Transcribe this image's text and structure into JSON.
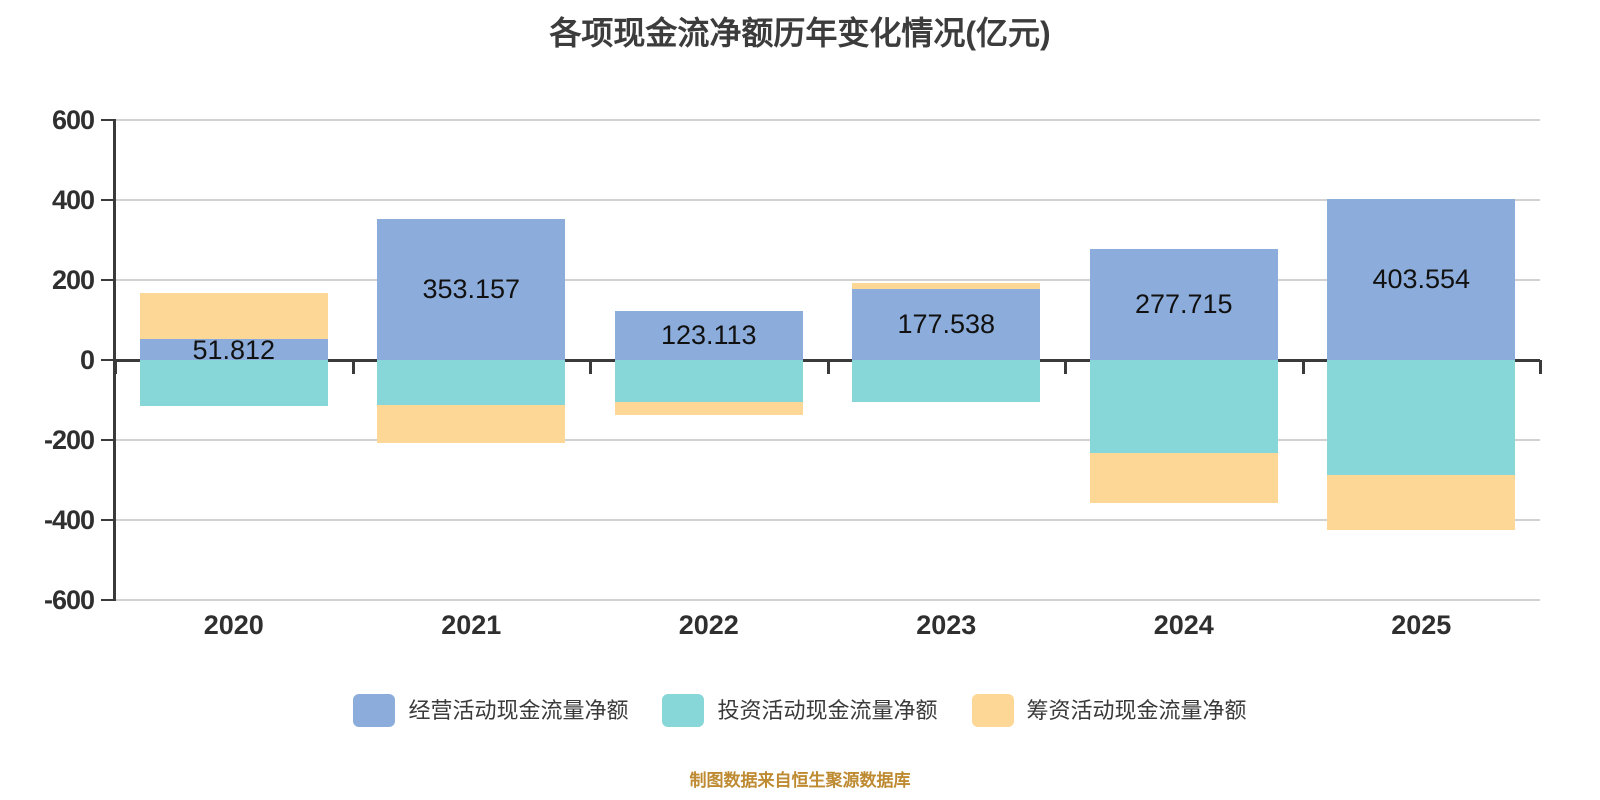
{
  "title": "各项现金流净额历年变化情况(亿元)",
  "caption": "制图数据来自恒生聚源数据库",
  "colors": {
    "operating": "#8CADDB",
    "investing": "#87D7D9",
    "financing": "#FCD795",
    "grid": "#D2D2D2",
    "axis": "#3A3A3A",
    "title_text": "#3C3C3C",
    "tick_text": "#2F2F2F",
    "data_label_text": "#111111",
    "caption_text": "#BE8B33",
    "background": "#FFFFFF"
  },
  "chart_data": {
    "type": "bar",
    "stacked": true,
    "title": "各项现金流净额历年变化情况(亿元)",
    "categories": [
      "2020",
      "2021",
      "2022",
      "2023",
      "2024",
      "2025"
    ],
    "series": [
      {
        "key": "operating",
        "name": "经营活动现金流量净额",
        "color": "#8CADDB",
        "values": [
          51.812,
          353.157,
          123.113,
          177.538,
          277.715,
          403.554
        ]
      },
      {
        "key": "investing",
        "name": "投资活动现金流量净额",
        "color": "#87D7D9",
        "values": [
          -115,
          -113,
          -104,
          -104,
          -232,
          -288
        ]
      },
      {
        "key": "financing",
        "name": "筹资活动现金流量净额",
        "color": "#FCD795",
        "values": [
          116,
          -94,
          -33,
          14,
          -125,
          -137
        ]
      }
    ],
    "data_labels": [
      "51.812",
      "353.157",
      "123.113",
      "177.538",
      "277.715",
      "403.554"
    ],
    "data_label_series": "operating",
    "xlabel": "",
    "ylabel": "",
    "ylim": [
      -600,
      600
    ],
    "yticks": [
      600,
      400,
      200,
      0,
      -200,
      -400,
      -600
    ],
    "grid": true,
    "legend_position": "bottom"
  }
}
